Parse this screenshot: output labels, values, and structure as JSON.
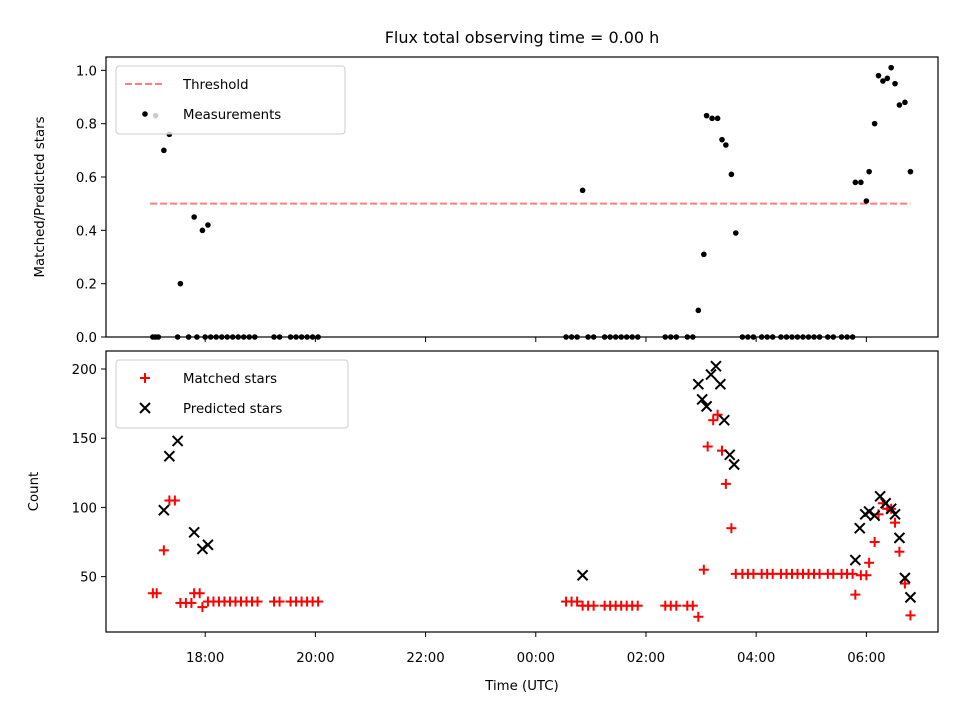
{
  "chart_data": [
    {
      "type": "scatter",
      "title": "Flux total observing time = 0.00 h",
      "xlabel": "",
      "ylabel": "Matched/Predicted stars",
      "ylim": [
        0,
        1.05
      ],
      "yticks": [
        0.0,
        0.2,
        0.4,
        0.6,
        0.8,
        1.0
      ],
      "ytick_labels": [
        "0.0",
        "0.2",
        "0.4",
        "0.6",
        "0.8",
        "1.0"
      ],
      "x_unit": "hours since 00:00 UTC (start day)",
      "xlim": [
        16.2,
        31.3
      ],
      "legend_position": "upper-left",
      "threshold": {
        "name": "Threshold",
        "value": 0.5,
        "x_range": [
          17.0,
          30.8
        ],
        "color": "#ff7f7f",
        "style": "dashed"
      },
      "series": [
        {
          "name": "Measurements",
          "color": "#000000",
          "marker": "dot",
          "points": [
            [
              17.05,
              0.0
            ],
            [
              17.1,
              0.0
            ],
            [
              17.15,
              0.0
            ],
            [
              17.1,
              0.83
            ],
            [
              17.25,
              0.7
            ],
            [
              17.35,
              0.76
            ],
            [
              17.5,
              0.0
            ],
            [
              17.55,
              0.2
            ],
            [
              17.7,
              0.0
            ],
            [
              17.8,
              0.45
            ],
            [
              17.95,
              0.4
            ],
            [
              18.05,
              0.42
            ],
            [
              17.85,
              0.0
            ],
            [
              18.0,
              0.0
            ],
            [
              18.1,
              0.0
            ],
            [
              18.2,
              0.0
            ],
            [
              18.3,
              0.0
            ],
            [
              18.4,
              0.0
            ],
            [
              18.5,
              0.0
            ],
            [
              18.6,
              0.0
            ],
            [
              18.7,
              0.0
            ],
            [
              18.8,
              0.0
            ],
            [
              18.9,
              0.0
            ],
            [
              19.25,
              0.0
            ],
            [
              19.35,
              0.0
            ],
            [
              19.55,
              0.0
            ],
            [
              19.65,
              0.0
            ],
            [
              19.75,
              0.0
            ],
            [
              19.85,
              0.0
            ],
            [
              19.95,
              0.0
            ],
            [
              20.05,
              0.0
            ],
            [
              24.55,
              0.0
            ],
            [
              24.65,
              0.0
            ],
            [
              24.75,
              0.0
            ],
            [
              24.85,
              0.55
            ],
            [
              24.95,
              0.0
            ],
            [
              25.05,
              0.0
            ],
            [
              25.25,
              0.0
            ],
            [
              25.35,
              0.0
            ],
            [
              25.45,
              0.0
            ],
            [
              25.55,
              0.0
            ],
            [
              25.65,
              0.0
            ],
            [
              25.75,
              0.0
            ],
            [
              25.85,
              0.0
            ],
            [
              26.35,
              0.0
            ],
            [
              26.45,
              0.0
            ],
            [
              26.55,
              0.0
            ],
            [
              26.75,
              0.0
            ],
            [
              26.85,
              0.0
            ],
            [
              26.95,
              0.1
            ],
            [
              27.05,
              0.31
            ],
            [
              27.1,
              0.83
            ],
            [
              27.2,
              0.82
            ],
            [
              27.3,
              0.82
            ],
            [
              27.38,
              0.74
            ],
            [
              27.45,
              0.72
            ],
            [
              27.55,
              0.61
            ],
            [
              27.63,
              0.39
            ],
            [
              27.75,
              0.0
            ],
            [
              27.85,
              0.0
            ],
            [
              27.95,
              0.0
            ],
            [
              28.1,
              0.0
            ],
            [
              28.2,
              0.0
            ],
            [
              28.3,
              0.0
            ],
            [
              28.45,
              0.0
            ],
            [
              28.55,
              0.0
            ],
            [
              28.65,
              0.0
            ],
            [
              28.75,
              0.0
            ],
            [
              28.85,
              0.0
            ],
            [
              28.95,
              0.0
            ],
            [
              29.05,
              0.0
            ],
            [
              29.15,
              0.0
            ],
            [
              29.3,
              0.0
            ],
            [
              29.4,
              0.0
            ],
            [
              29.55,
              0.0
            ],
            [
              29.65,
              0.0
            ],
            [
              29.75,
              0.0
            ],
            [
              29.8,
              0.58
            ],
            [
              29.9,
              0.58
            ],
            [
              30.0,
              0.51
            ],
            [
              30.05,
              0.62
            ],
            [
              30.15,
              0.8
            ],
            [
              30.22,
              0.98
            ],
            [
              30.3,
              0.96
            ],
            [
              30.38,
              0.97
            ],
            [
              30.45,
              1.01
            ],
            [
              30.52,
              0.95
            ],
            [
              30.6,
              0.87
            ],
            [
              30.7,
              0.88
            ],
            [
              30.8,
              0.62
            ]
          ]
        }
      ]
    },
    {
      "type": "scatter",
      "title": "",
      "xlabel": "Time (UTC)",
      "ylabel": "Count",
      "ylim": [
        10,
        213
      ],
      "yticks": [
        50,
        100,
        150,
        200
      ],
      "ytick_labels": [
        "50",
        "100",
        "150",
        "200"
      ],
      "x_unit": "hours since 00:00 UTC (start day)",
      "xlim": [
        16.2,
        31.3
      ],
      "xticks": [
        18,
        20,
        22,
        24,
        26,
        28,
        30
      ],
      "xtick_labels": [
        "18:00",
        "20:00",
        "22:00",
        "00:00",
        "02:00",
        "04:00",
        "06:00"
      ],
      "legend_position": "upper-left",
      "series": [
        {
          "name": "Matched stars",
          "color": "#ff0000",
          "marker": "plus",
          "points": [
            [
              17.05,
              38
            ],
            [
              17.12,
              38
            ],
            [
              17.25,
              69
            ],
            [
              17.35,
              105
            ],
            [
              17.45,
              105
            ],
            [
              17.55,
              31
            ],
            [
              17.65,
              31
            ],
            [
              17.75,
              31
            ],
            [
              17.8,
              38
            ],
            [
              17.9,
              38
            ],
            [
              17.95,
              28
            ],
            [
              18.05,
              32
            ],
            [
              18.15,
              32
            ],
            [
              18.25,
              32
            ],
            [
              18.35,
              32
            ],
            [
              18.45,
              32
            ],
            [
              18.55,
              32
            ],
            [
              18.65,
              32
            ],
            [
              18.75,
              32
            ],
            [
              18.85,
              32
            ],
            [
              18.95,
              32
            ],
            [
              19.25,
              32
            ],
            [
              19.35,
              32
            ],
            [
              19.55,
              32
            ],
            [
              19.65,
              32
            ],
            [
              19.75,
              32
            ],
            [
              19.85,
              32
            ],
            [
              19.95,
              32
            ],
            [
              20.05,
              32
            ],
            [
              24.55,
              32
            ],
            [
              24.65,
              32
            ],
            [
              24.75,
              32
            ],
            [
              24.85,
              29
            ],
            [
              24.95,
              29
            ],
            [
              25.05,
              29
            ],
            [
              25.25,
              29
            ],
            [
              25.35,
              29
            ],
            [
              25.45,
              29
            ],
            [
              25.55,
              29
            ],
            [
              25.65,
              29
            ],
            [
              25.75,
              29
            ],
            [
              25.85,
              29
            ],
            [
              26.35,
              29
            ],
            [
              26.45,
              29
            ],
            [
              26.55,
              29
            ],
            [
              26.75,
              29
            ],
            [
              26.85,
              29
            ],
            [
              26.95,
              21
            ],
            [
              27.05,
              55
            ],
            [
              27.12,
              144
            ],
            [
              27.22,
              163
            ],
            [
              27.3,
              167
            ],
            [
              27.38,
              141
            ],
            [
              27.45,
              117
            ],
            [
              27.55,
              85
            ],
            [
              27.63,
              52
            ],
            [
              27.75,
              52
            ],
            [
              27.85,
              52
            ],
            [
              27.95,
              52
            ],
            [
              28.1,
              52
            ],
            [
              28.2,
              52
            ],
            [
              28.3,
              52
            ],
            [
              28.45,
              52
            ],
            [
              28.55,
              52
            ],
            [
              28.65,
              52
            ],
            [
              28.75,
              52
            ],
            [
              28.85,
              52
            ],
            [
              28.95,
              52
            ],
            [
              29.05,
              52
            ],
            [
              29.15,
              52
            ],
            [
              29.3,
              52
            ],
            [
              29.4,
              52
            ],
            [
              29.55,
              52
            ],
            [
              29.65,
              52
            ],
            [
              29.75,
              52
            ],
            [
              29.8,
              37
            ],
            [
              29.9,
              51
            ],
            [
              30.0,
              51
            ],
            [
              30.05,
              60
            ],
            [
              30.15,
              75
            ],
            [
              30.22,
              95
            ],
            [
              30.3,
              103
            ],
            [
              30.38,
              99
            ],
            [
              30.45,
              99
            ],
            [
              30.52,
              89
            ],
            [
              30.6,
              68
            ],
            [
              30.7,
              45
            ],
            [
              30.8,
              22
            ]
          ]
        },
        {
          "name": "Predicted stars",
          "color": "#000000",
          "marker": "x",
          "points": [
            [
              17.25,
              98
            ],
            [
              17.35,
              137
            ],
            [
              17.5,
              148
            ],
            [
              17.8,
              82
            ],
            [
              17.95,
              70
            ],
            [
              18.05,
              73
            ],
            [
              24.85,
              51
            ],
            [
              26.95,
              189
            ],
            [
              27.02,
              178
            ],
            [
              27.1,
              173
            ],
            [
              27.18,
              196
            ],
            [
              27.27,
              202
            ],
            [
              27.35,
              189
            ],
            [
              27.42,
              163
            ],
            [
              27.52,
              138
            ],
            [
              27.6,
              131
            ],
            [
              29.8,
              62
            ],
            [
              29.88,
              85
            ],
            [
              29.98,
              95
            ],
            [
              30.05,
              97
            ],
            [
              30.15,
              94
            ],
            [
              30.25,
              108
            ],
            [
              30.35,
              103
            ],
            [
              30.45,
              99
            ],
            [
              30.52,
              95
            ],
            [
              30.6,
              78
            ],
            [
              30.7,
              49
            ],
            [
              30.8,
              35
            ]
          ]
        }
      ]
    }
  ]
}
